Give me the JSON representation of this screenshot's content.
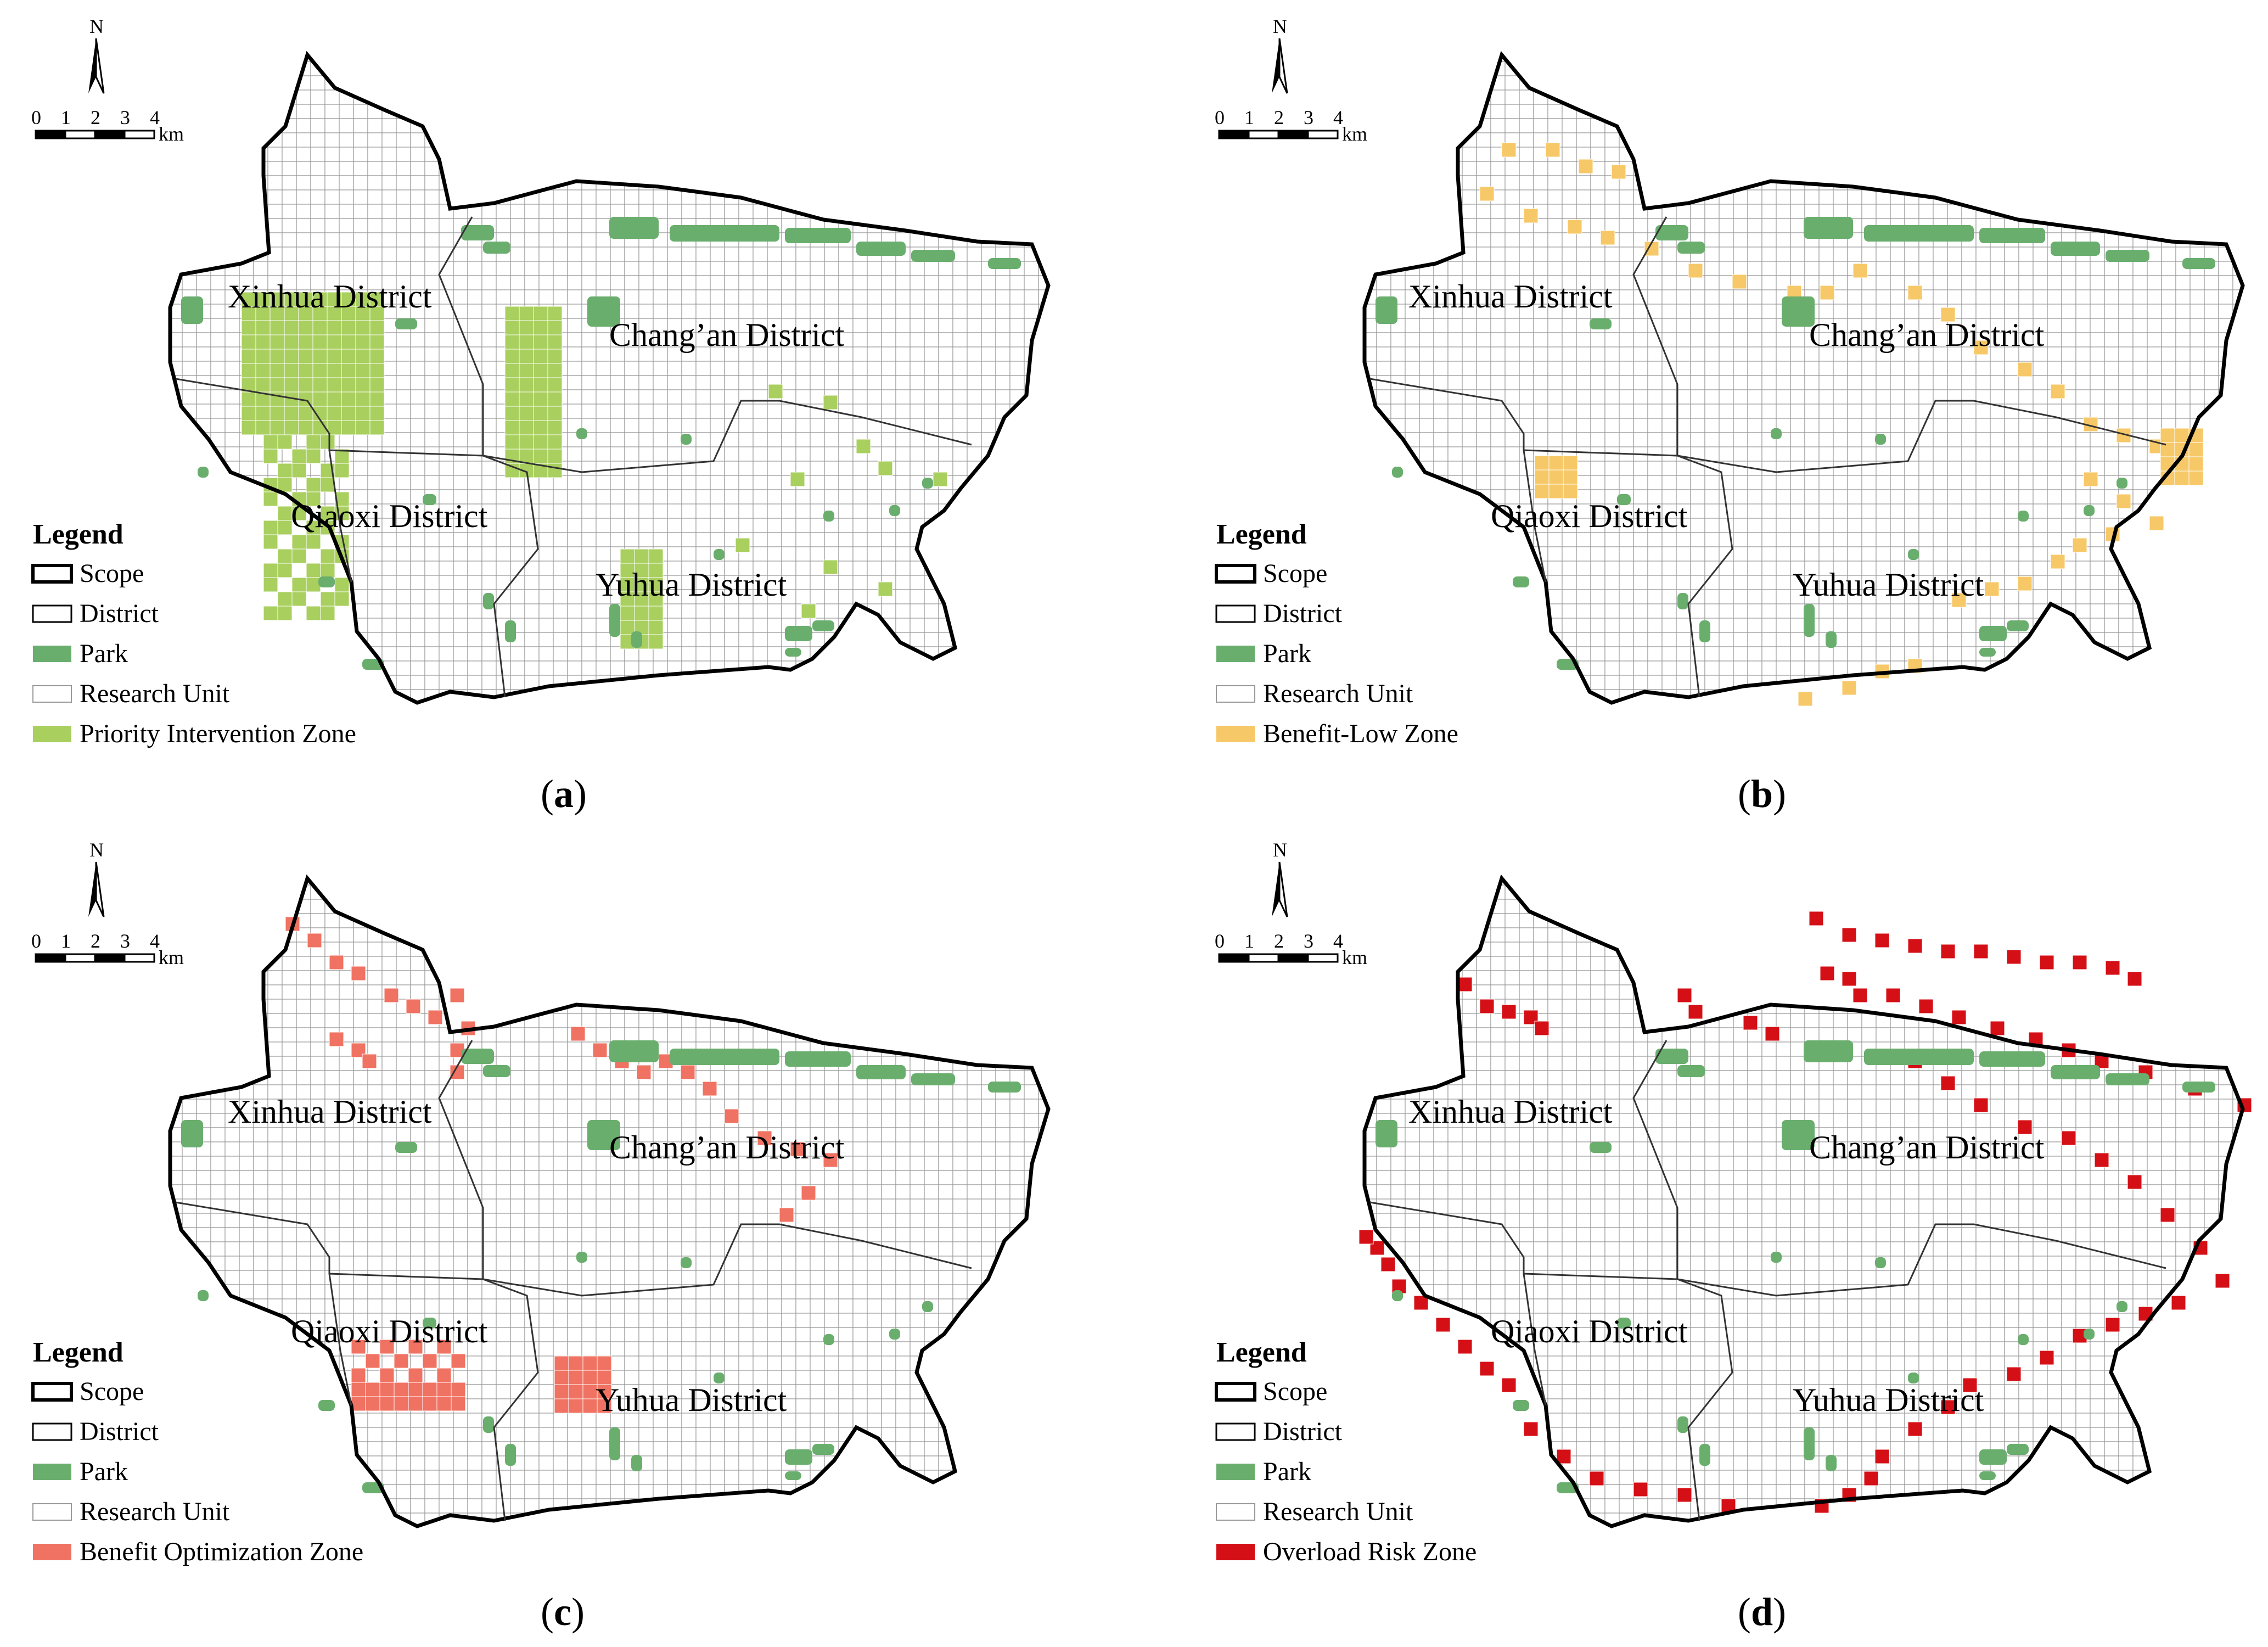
{
  "colors": {
    "park": "#6aae6e",
    "grid": "#9a9a9a",
    "scope": "#000000",
    "district": "#333333"
  },
  "scale_bar": {
    "ticks": [
      "0",
      "1",
      "2",
      "3",
      "4"
    ],
    "unit": "km",
    "north": "N"
  },
  "districts": [
    "Xinhua District",
    "Chang’an District",
    "Qiaoxi District",
    "Yuhua District"
  ],
  "legend_common": {
    "title": "Legend",
    "scope": "Scope",
    "district": "District",
    "park": "Park",
    "unit": "Research Unit"
  },
  "panels": [
    {
      "caption": "a",
      "zone_label": "Priority Intervention Zone",
      "zone_color": "#a9cf5f"
    },
    {
      "caption": "b",
      "zone_label": "Benefit-Low Zone",
      "zone_color": "#f7c867"
    },
    {
      "caption": "c",
      "zone_label": "Benefit Optimization Zone",
      "zone_color": "#f07262"
    },
    {
      "caption": "d",
      "zone_label": "Overload Risk Zone",
      "zone_color": "#d40f16"
    }
  ]
}
